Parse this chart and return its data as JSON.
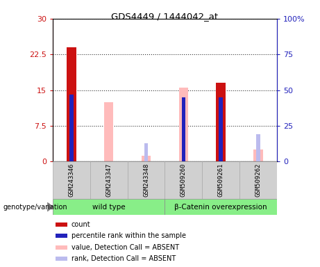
{
  "title": "GDS4449 / 1444042_at",
  "samples": [
    "GSM243346",
    "GSM243347",
    "GSM243348",
    "GSM509260",
    "GSM509261",
    "GSM509262"
  ],
  "red_bars": [
    24.0,
    0,
    0,
    0,
    16.5,
    0
  ],
  "blue_bars_left": [
    14.0,
    0,
    0,
    13.5,
    13.5,
    0
  ],
  "pink_bars": [
    0,
    12.5,
    1.2,
    15.5,
    0,
    2.5
  ],
  "lavender_bars_right": [
    0,
    0,
    12.7,
    0,
    0,
    19.3
  ],
  "ylim_left": [
    0,
    30
  ],
  "ylim_right": [
    0,
    100
  ],
  "yticks_left": [
    0,
    7.5,
    15,
    22.5,
    30
  ],
  "ytick_labels_left": [
    "0",
    "7.5",
    "15",
    "22.5",
    "30"
  ],
  "yticks_right": [
    0,
    25,
    50,
    75,
    100
  ],
  "ytick_labels_right": [
    "0",
    "25",
    "50",
    "75",
    "100%"
  ],
  "legend_items": [
    {
      "label": "count",
      "color": "#cc1111"
    },
    {
      "label": "percentile rank within the sample",
      "color": "#2222bb"
    },
    {
      "label": "value, Detection Call = ABSENT",
      "color": "#ffbbbb"
    },
    {
      "label": "rank, Detection Call = ABSENT",
      "color": "#bbbbee"
    }
  ],
  "bar_width": 0.25,
  "blue_bar_width": 0.1,
  "lavender_bar_width": 0.1,
  "label_color_left": "#cc1111",
  "label_color_right": "#2222bb",
  "genotype_label": "genotype/variation",
  "groups": [
    {
      "label": "wild type",
      "start": 0,
      "end": 3,
      "color": "#88ee88"
    },
    {
      "label": "β-Catenin overexpression",
      "start": 3,
      "end": 6,
      "color": "#88ee88"
    }
  ]
}
